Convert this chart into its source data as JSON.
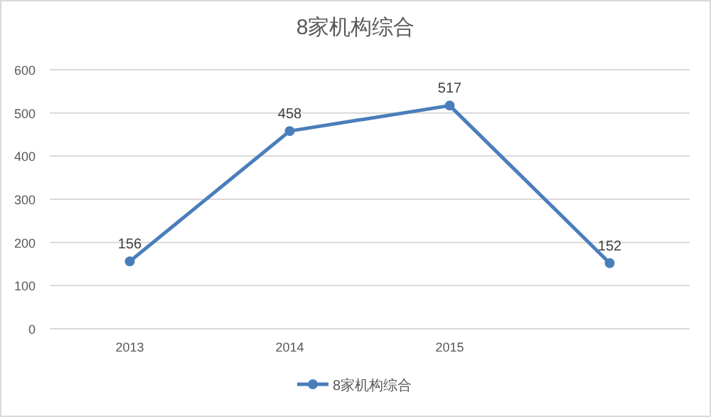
{
  "chart_data": {
    "type": "line",
    "title": "8家机构综合",
    "categories": [
      "2013",
      "2014",
      "2015",
      null
    ],
    "series": [
      {
        "name": "8家机构综合",
        "color": "#4a7ebb",
        "values": [
          156,
          458,
          517,
          152
        ]
      }
    ],
    "ylim": [
      0,
      600
    ],
    "yticks": [
      0,
      100,
      200,
      300,
      400,
      500,
      600
    ],
    "grid": "y",
    "legend": "bottom",
    "marker": "circle",
    "data_labels": true
  }
}
